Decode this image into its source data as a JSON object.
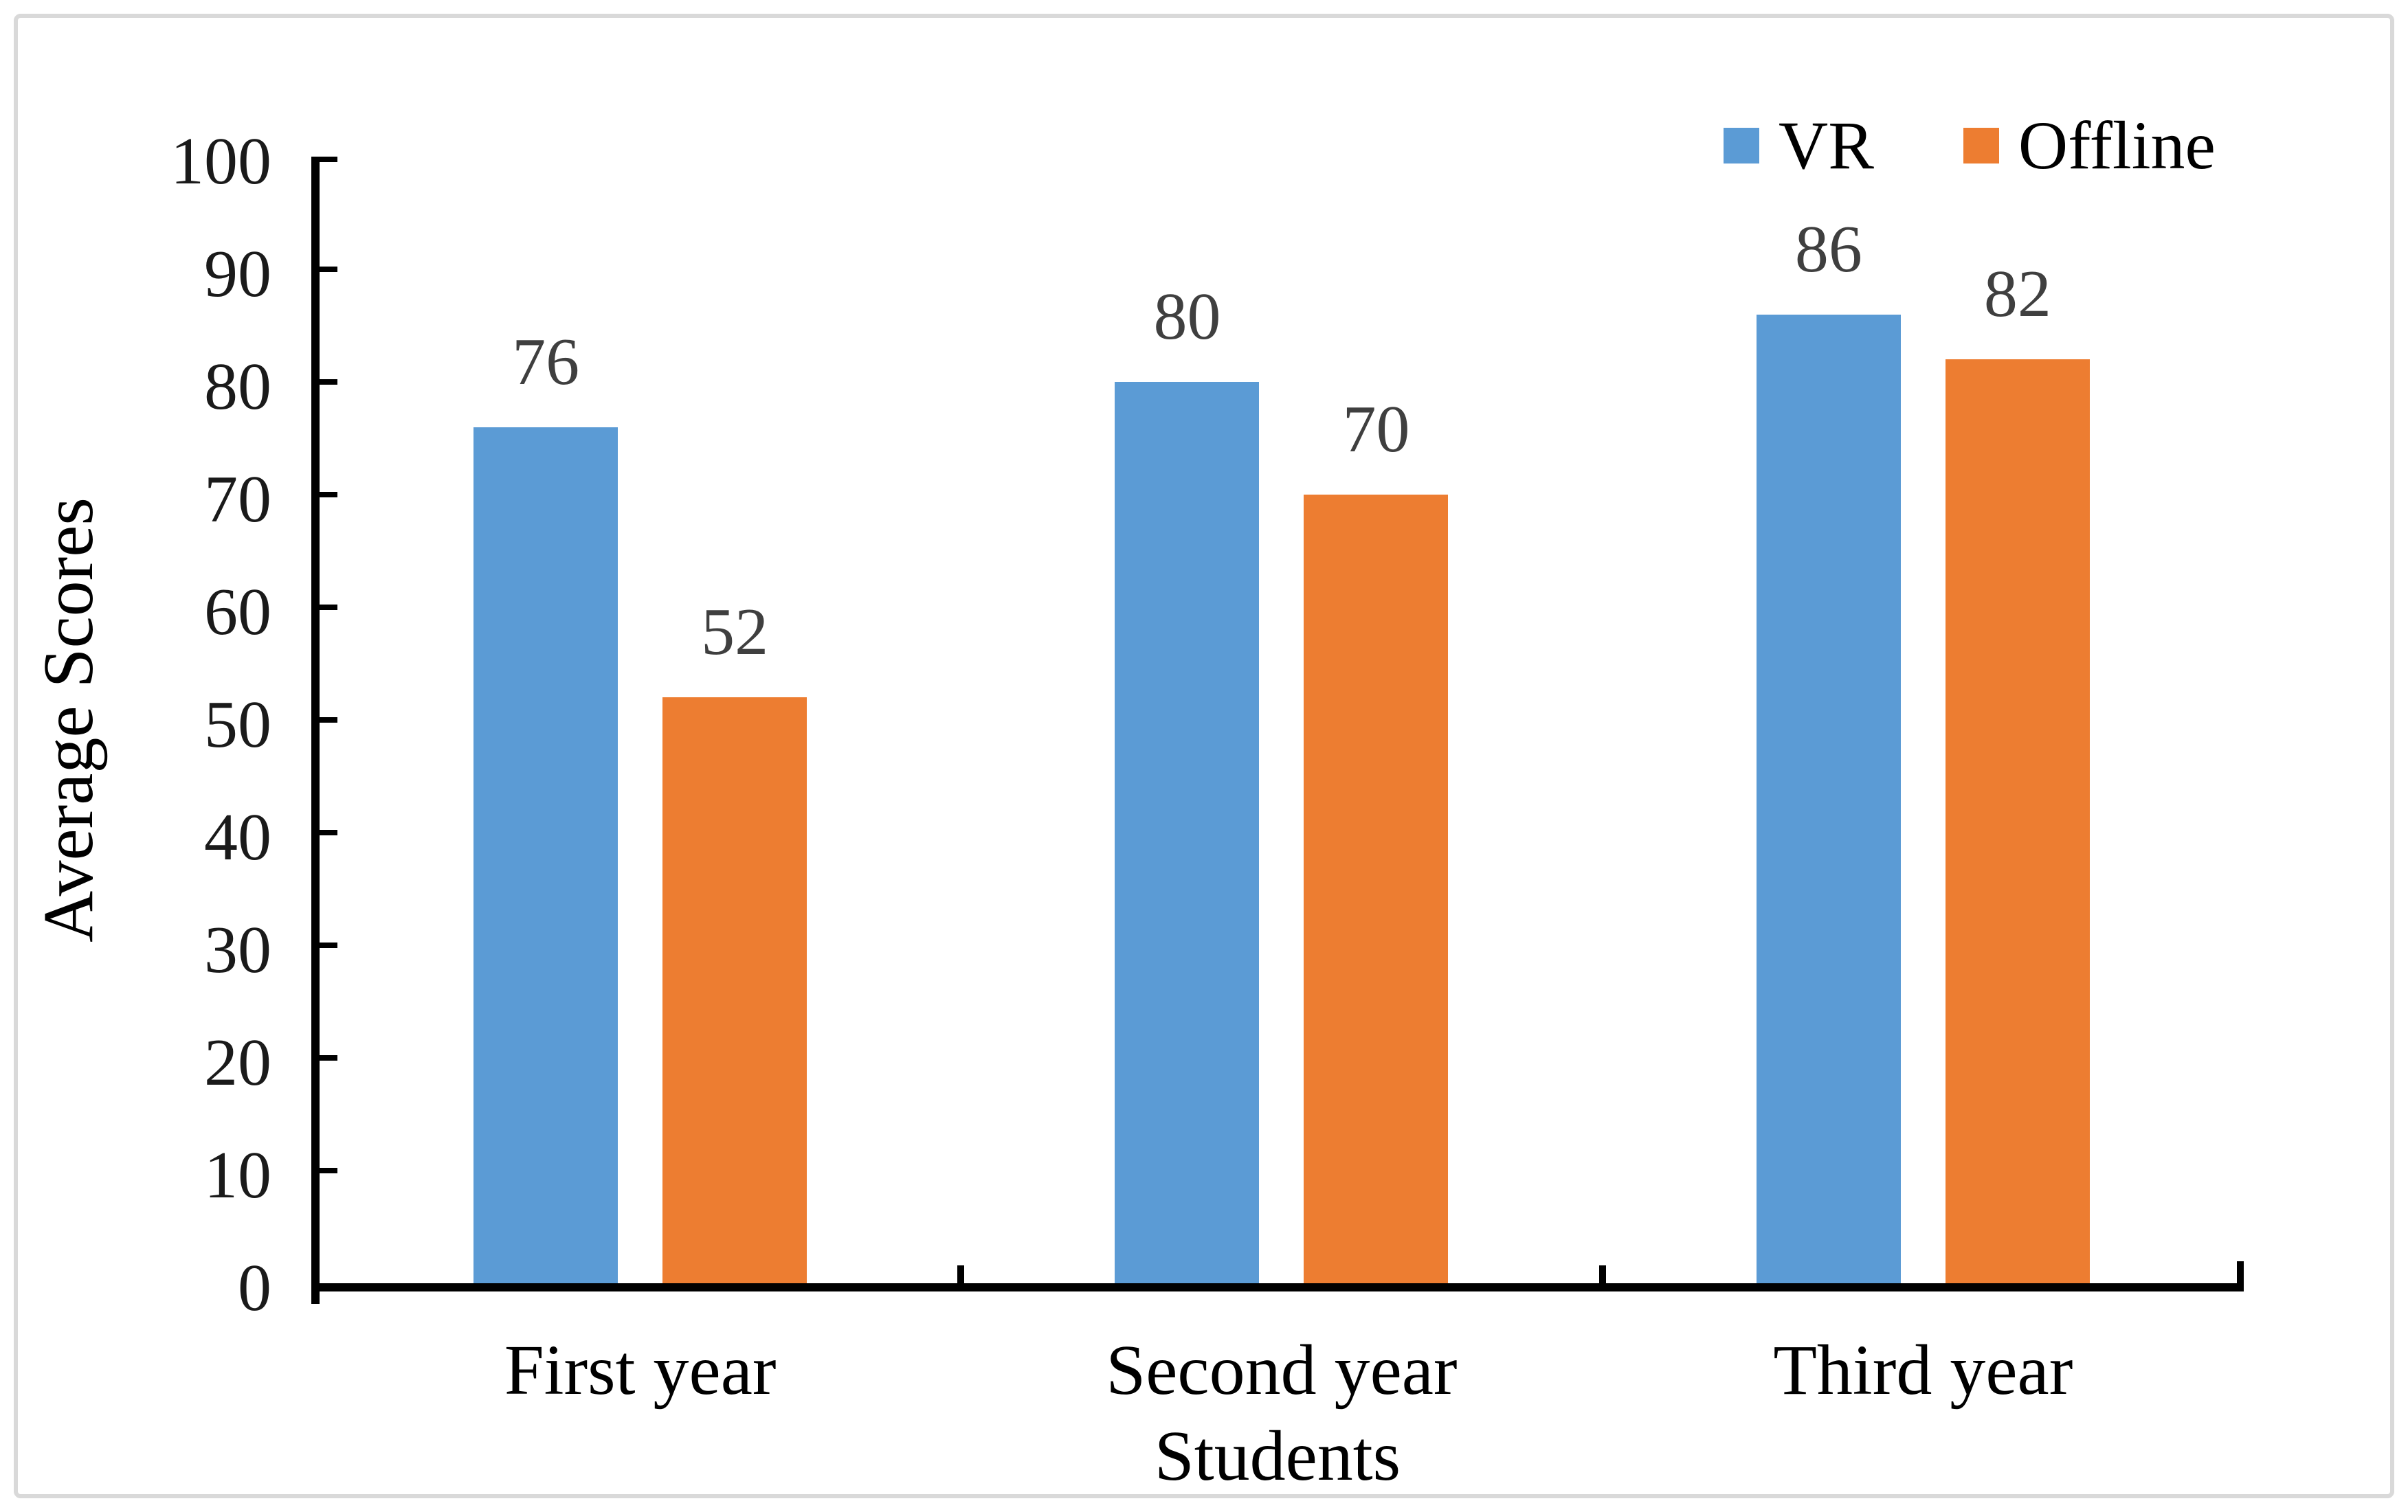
{
  "chart_data": {
    "type": "bar",
    "categories": [
      "First year",
      "Second year",
      "Third year"
    ],
    "series": [
      {
        "name": "VR",
        "color": "#5B9BD5",
        "values": [
          76,
          80,
          86
        ]
      },
      {
        "name": "Offline",
        "color": "#ED7D31",
        "values": [
          52,
          70,
          82
        ]
      }
    ],
    "title": "",
    "xlabel": "Students",
    "ylabel": "Average Scores",
    "ylim": [
      0,
      100
    ],
    "yticks": [
      0,
      10,
      20,
      30,
      40,
      50,
      60,
      70,
      80,
      90,
      100
    ],
    "grid": false,
    "legend_position": "top-right",
    "data_labels": true
  },
  "axes": {
    "y_title": "Average Scores",
    "x_title": "Students"
  },
  "legend": {
    "items": [
      {
        "label": "VR",
        "color": "#5B9BD5"
      },
      {
        "label": "Offline",
        "color": "#ED7D31"
      }
    ]
  },
  "colors": {
    "vr_bar": "#5B9BD5",
    "offline_bar": "#ED7D31",
    "axis_line": "#000000",
    "tick_label": "#1a1a1a",
    "data_label": "#3f3f3f",
    "frame_border": "#d9d9d9",
    "background": "#ffffff"
  }
}
